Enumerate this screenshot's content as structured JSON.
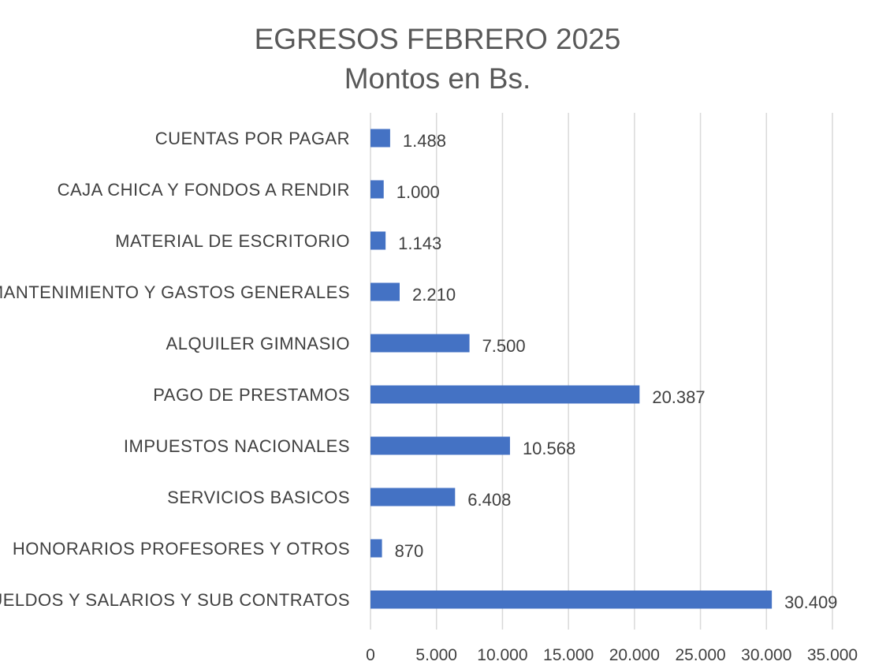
{
  "chart_data": {
    "type": "bar",
    "orientation": "horizontal",
    "title": "EGRESOS FEBRERO 2025",
    "subtitle": "Montos en Bs.",
    "categories": [
      "CUENTAS POR PAGAR",
      "CAJA CHICA Y FONDOS A RENDIR",
      "MATERIAL DE ESCRITORIO",
      "MANTENIMIENTO Y GASTOS GENERALES",
      "ALQUILER GIMNASIO",
      "PAGO DE PRESTAMOS",
      "IMPUESTOS NACIONALES",
      "SERVICIOS BASICOS",
      "HONORARIOS PROFESORES Y OTROS",
      "SUELDOS Y SALARIOS Y SUB CONTRATOS"
    ],
    "values": [
      1488,
      1000,
      1143,
      2210,
      7500,
      20387,
      10568,
      6408,
      870,
      30409
    ],
    "data_labels": [
      "1.488",
      "1.000",
      "1.143",
      "2.210",
      "7.500",
      "20.387",
      "10.568",
      "6.408",
      "870",
      "30.409"
    ],
    "xlim": [
      0,
      35000
    ],
    "x_ticks": [
      0,
      5000,
      10000,
      15000,
      20000,
      25000,
      30000,
      35000
    ],
    "x_tick_labels": [
      "0",
      "5.000",
      "10.000",
      "15.000",
      "20.000",
      "25.000",
      "30.000",
      "35.000"
    ],
    "grid": "vertical",
    "legend": "none",
    "bar_color": "#4472C4"
  }
}
